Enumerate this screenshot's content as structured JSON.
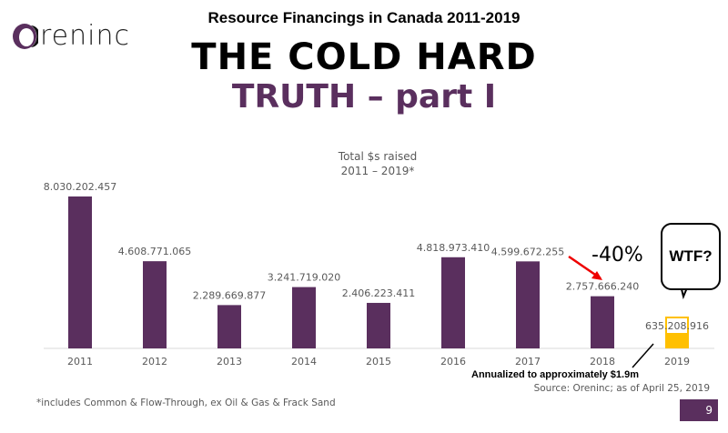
{
  "logo": {
    "text": "reninc"
  },
  "header": {
    "subtitle": "Resource Financings in Canada 2011-2019",
    "title_line1": "THE COLD HARD",
    "title_line2": "TRUTH – part I"
  },
  "chart_data": {
    "type": "bar",
    "title": "Total $s raised",
    "subtitle": "2011 – 2019*",
    "categories": [
      "2011",
      "2012",
      "2013",
      "2014",
      "2015",
      "2016",
      "2017",
      "2018",
      "2019"
    ],
    "values": [
      8030202457,
      4608771065,
      2289669877,
      3241719020,
      2406223411,
      4818973410,
      4599672255,
      2757666240,
      635208916
    ],
    "labels": [
      "8.030.202.457",
      "4.608.771.065",
      "2.289.669.877",
      "3.241.719.020",
      "2.406.223.411",
      "4.818.973.410",
      "4.599.672.255",
      "2.757.666.240",
      "635.208.916"
    ],
    "bar_color": "#5a2f5e",
    "highlight_color": "#ffc000",
    "highlight_index": 8,
    "xlabel": "",
    "ylabel": "",
    "grid": false
  },
  "annotations": {
    "change": "-40%",
    "bubble": "WTF?",
    "annualized": "Annualized to approximately $1.9m"
  },
  "footnote": "*includes Common & Flow-Through, ex Oil & Gas & Frack Sand",
  "source": "Source: Oreninc; as of April 25, 2019",
  "page_number": "9"
}
